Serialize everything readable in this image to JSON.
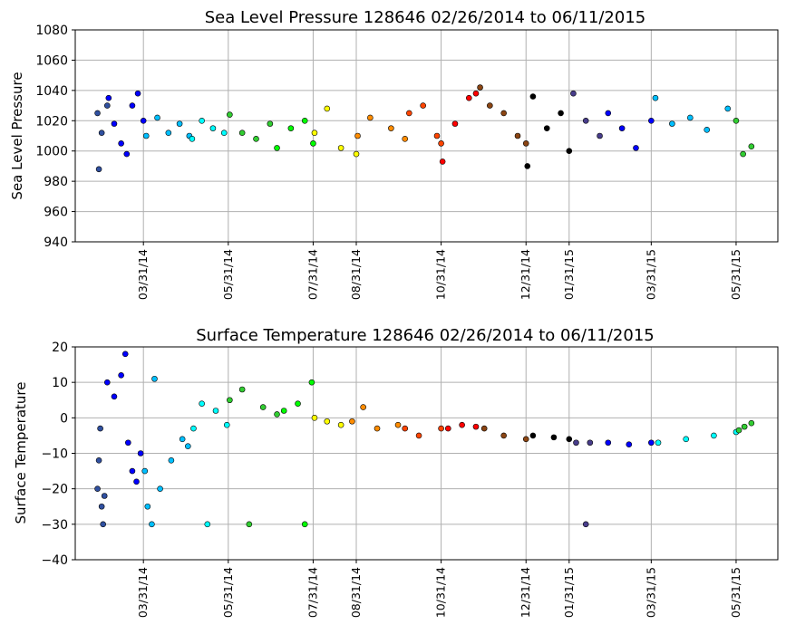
{
  "chart_data": [
    {
      "type": "scatter",
      "title": "Sea Level Pressure 128646  02/26/2014 to 06/11/2015",
      "ylabel": "Sea Level Pressure",
      "xlabel": "",
      "ylim": [
        940,
        1080
      ],
      "yticks": [
        "940",
        "960",
        "980",
        "1000",
        "1020",
        "1040",
        "1060",
        "1080"
      ],
      "xrange": [
        "02/10/2014",
        "06/30/2015"
      ],
      "xticks": [
        "03/31/14",
        "05/31/14",
        "07/31/14",
        "08/31/14",
        "10/31/14",
        "12/31/14",
        "01/31/15",
        "03/31/15",
        "05/31/15"
      ],
      "grid": true,
      "colormap": [
        "#0000ff",
        "#00bfff",
        "#00ffff",
        "#32cd32",
        "#00ff00",
        "#ffff00",
        "#ff8c00",
        "#ff4500",
        "#ff0000",
        "#8b4513",
        "#000000",
        "#483d8b"
      ],
      "series": [
        {
          "color": "#3050a0",
          "points": [
            [
              "02/26/2014",
              1025
            ],
            [
              "03/01/2014",
              1012
            ],
            [
              "03/05/2014",
              1030
            ],
            [
              "02/27/2014",
              988
            ]
          ]
        },
        {
          "color": "#0000ff",
          "points": [
            [
              "03/06/2014",
              1035
            ],
            [
              "03/10/2014",
              1018
            ],
            [
              "03/15/2014",
              1005
            ],
            [
              "03/19/2014",
              998
            ],
            [
              "03/23/2014",
              1030
            ],
            [
              "03/27/2014",
              1038
            ],
            [
              "03/31/2014",
              1020
            ]
          ]
        },
        {
          "color": "#00bfff",
          "points": [
            [
              "04/02/2014",
              1010
            ],
            [
              "04/10/2014",
              1022
            ],
            [
              "04/18/2014",
              1012
            ],
            [
              "04/26/2014",
              1018
            ],
            [
              "05/03/2014",
              1010
            ]
          ]
        },
        {
          "color": "#00ffff",
          "points": [
            [
              "05/05/2014",
              1008
            ],
            [
              "05/12/2014",
              1020
            ],
            [
              "05/20/2014",
              1015
            ],
            [
              "05/28/2014",
              1012
            ]
          ]
        },
        {
          "color": "#32cd32",
          "points": [
            [
              "06/01/2014",
              1024
            ],
            [
              "06/10/2014",
              1012
            ],
            [
              "06/20/2014",
              1008
            ],
            [
              "06/30/2014",
              1018
            ]
          ]
        },
        {
          "color": "#00ff00",
          "points": [
            [
              "07/05/2014",
              1002
            ],
            [
              "07/15/2014",
              1015
            ],
            [
              "07/25/2014",
              1020
            ],
            [
              "07/31/2014",
              1005
            ]
          ]
        },
        {
          "color": "#ffff00",
          "points": [
            [
              "08/01/2014",
              1012
            ],
            [
              "08/10/2014",
              1028
            ],
            [
              "08/20/2014",
              1002
            ],
            [
              "08/31/2014",
              998
            ]
          ]
        },
        {
          "color": "#ff8c00",
          "points": [
            [
              "09/01/2014",
              1010
            ],
            [
              "09/10/2014",
              1022
            ],
            [
              "09/25/2014",
              1015
            ],
            [
              "10/05/2014",
              1008
            ]
          ]
        },
        {
          "color": "#ff4500",
          "points": [
            [
              "10/08/2014",
              1025
            ],
            [
              "10/18/2014",
              1030
            ],
            [
              "10/28/2014",
              1010
            ],
            [
              "10/31/2014",
              1005
            ]
          ]
        },
        {
          "color": "#ff0000",
          "points": [
            [
              "11/01/2014",
              993
            ],
            [
              "11/10/2014",
              1018
            ],
            [
              "11/20/2014",
              1035
            ],
            [
              "11/25/2014",
              1038
            ]
          ]
        },
        {
          "color": "#8b4513",
          "points": [
            [
              "11/28/2014",
              1042
            ],
            [
              "12/05/2014",
              1030
            ],
            [
              "12/15/2014",
              1025
            ],
            [
              "12/25/2014",
              1010
            ],
            [
              "12/31/2014",
              1005
            ]
          ]
        },
        {
          "color": "#000000",
          "points": [
            [
              "01/01/2015",
              990
            ],
            [
              "01/05/2015",
              1036
            ],
            [
              "01/15/2015",
              1015
            ],
            [
              "01/25/2015",
              1025
            ],
            [
              "01/31/2015",
              1000
            ]
          ]
        },
        {
          "color": "#483d8b",
          "points": [
            [
              "02/03/2015",
              1038
            ],
            [
              "02/12/2015",
              1020
            ],
            [
              "02/22/2015",
              1010
            ]
          ]
        },
        {
          "color": "#0000ff",
          "points": [
            [
              "02/28/2015",
              1025
            ],
            [
              "03/10/2015",
              1015
            ],
            [
              "03/20/2015",
              1002
            ],
            [
              "03/31/2015",
              1020
            ]
          ]
        },
        {
          "color": "#00bfff",
          "points": [
            [
              "04/03/2015",
              1035
            ],
            [
              "04/15/2015",
              1018
            ],
            [
              "04/28/2015",
              1022
            ],
            [
              "05/10/2015",
              1014
            ],
            [
              "05/25/2015",
              1028
            ]
          ]
        },
        {
          "color": "#32cd32",
          "points": [
            [
              "05/31/2015",
              1020
            ],
            [
              "06/05/2015",
              998
            ],
            [
              "06/11/2015",
              1003
            ]
          ]
        }
      ]
    },
    {
      "type": "scatter",
      "title": "Surface Temperature 128646  02/26/2014 to 06/11/2015",
      "ylabel": "Surface Temperature",
      "xlabel": "",
      "ylim": [
        -40,
        20
      ],
      "yticks": [
        "−40",
        "−30",
        "−20",
        "−10",
        "0",
        "10",
        "20"
      ],
      "xrange": [
        "02/10/2014",
        "06/30/2015"
      ],
      "xticks": [
        "03/31/14",
        "05/31/14",
        "07/31/14",
        "08/31/14",
        "10/31/14",
        "12/31/14",
        "01/31/15",
        "03/31/15",
        "05/31/15"
      ],
      "grid": true,
      "series": [
        {
          "color": "#3050a0",
          "points": [
            [
              "02/26/2014",
              -20
            ],
            [
              "02/27/2014",
              -12
            ],
            [
              "02/28/2014",
              -3
            ],
            [
              "03/01/2014",
              -25
            ],
            [
              "03/02/2014",
              -30
            ],
            [
              "03/03/2014",
              -22
            ]
          ]
        },
        {
          "color": "#0000ff",
          "points": [
            [
              "03/05/2014",
              10
            ],
            [
              "03/10/2014",
              6
            ],
            [
              "03/15/2014",
              12
            ],
            [
              "03/18/2014",
              18
            ],
            [
              "03/20/2014",
              -7
            ],
            [
              "03/23/2014",
              -15
            ],
            [
              "03/26/2014",
              -18
            ],
            [
              "03/29/2014",
              -10
            ]
          ]
        },
        {
          "color": "#00bfff",
          "points": [
            [
              "04/01/2014",
              -15
            ],
            [
              "04/03/2014",
              -25
            ],
            [
              "04/06/2014",
              -30
            ],
            [
              "04/08/2014",
              11
            ],
            [
              "04/12/2014",
              -20
            ],
            [
              "04/20/2014",
              -12
            ],
            [
              "04/28/2014",
              -6
            ],
            [
              "05/02/2014",
              -8
            ]
          ]
        },
        {
          "color": "#00ffff",
          "points": [
            [
              "05/06/2014",
              -3
            ],
            [
              "05/12/2014",
              4
            ],
            [
              "05/16/2014",
              -30
            ],
            [
              "05/22/2014",
              2
            ],
            [
              "05/30/2014",
              -2
            ]
          ]
        },
        {
          "color": "#32cd32",
          "points": [
            [
              "06/01/2014",
              5
            ],
            [
              "06/10/2014",
              8
            ],
            [
              "06/15/2014",
              -30
            ],
            [
              "06/25/2014",
              3
            ],
            [
              "07/05/2014",
              1
            ]
          ]
        },
        {
          "color": "#00ff00",
          "points": [
            [
              "07/10/2014",
              2
            ],
            [
              "07/20/2014",
              4
            ],
            [
              "07/25/2014",
              -30
            ],
            [
              "07/30/2014",
              10
            ]
          ]
        },
        {
          "color": "#ffff00",
          "points": [
            [
              "08/01/2014",
              0
            ],
            [
              "08/10/2014",
              -1
            ],
            [
              "08/20/2014",
              -2
            ]
          ]
        },
        {
          "color": "#ff8c00",
          "points": [
            [
              "08/28/2014",
              -1
            ],
            [
              "09/05/2014",
              3
            ],
            [
              "09/15/2014",
              -3
            ],
            [
              "09/30/2014",
              -2
            ]
          ]
        },
        {
          "color": "#ff4500",
          "points": [
            [
              "10/05/2014",
              -3
            ],
            [
              "10/15/2014",
              -5
            ],
            [
              "10/31/2014",
              -3
            ]
          ]
        },
        {
          "color": "#ff0000",
          "points": [
            [
              "11/05/2014",
              -3
            ],
            [
              "11/15/2014",
              -2
            ],
            [
              "11/25/2014",
              -2.5
            ]
          ]
        },
        {
          "color": "#8b4513",
          "points": [
            [
              "12/01/2014",
              -3
            ],
            [
              "12/15/2014",
              -5
            ],
            [
              "12/31/2014",
              -6
            ]
          ]
        },
        {
          "color": "#000000",
          "points": [
            [
              "01/05/2015",
              -5
            ],
            [
              "01/20/2015",
              -5.5
            ],
            [
              "01/31/2015",
              -6
            ]
          ]
        },
        {
          "color": "#483d8b",
          "points": [
            [
              "02/05/2015",
              -7
            ],
            [
              "02/15/2015",
              -7
            ],
            [
              "02/12/2015",
              -30
            ]
          ]
        },
        {
          "color": "#0000ff",
          "points": [
            [
              "02/28/2015",
              -7
            ],
            [
              "03/15/2015",
              -7.5
            ],
            [
              "03/31/2015",
              -7
            ]
          ]
        },
        {
          "color": "#00ffff",
          "points": [
            [
              "04/05/2015",
              -7
            ],
            [
              "04/25/2015",
              -6
            ],
            [
              "05/15/2015",
              -5
            ],
            [
              "05/31/2015",
              -4
            ]
          ]
        },
        {
          "color": "#32cd32",
          "points": [
            [
              "06/02/2015",
              -3.5
            ],
            [
              "06/06/2015",
              -2.5
            ],
            [
              "06/11/2015",
              -1.5
            ]
          ]
        }
      ]
    }
  ]
}
